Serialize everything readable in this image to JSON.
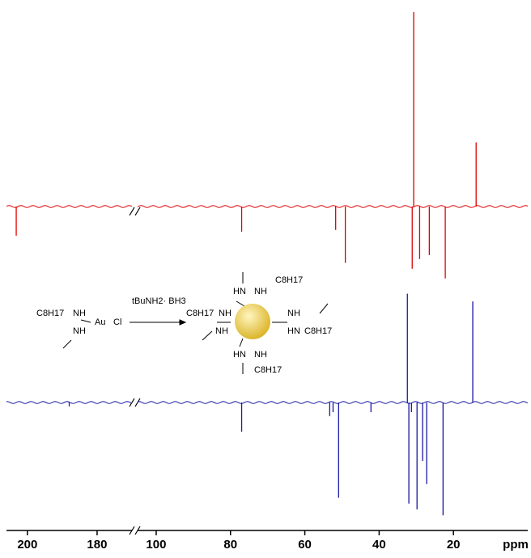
{
  "chart_data": {
    "type": "spectrum",
    "x_label": "ppm",
    "segments": [
      {
        "xlim": [
          206,
          170
        ],
        "xticks": [
          200,
          180
        ]
      },
      {
        "xlim": [
          105,
          0
        ],
        "xticks": [
          100,
          80,
          60,
          40,
          20
        ]
      }
    ],
    "series": [
      {
        "color": "#e00000",
        "x": [
          203.2,
          77,
          51.7,
          49.1,
          31.1,
          30.7,
          29.1,
          26.5,
          22.2,
          13.9
        ],
        "values": [
          -15,
          -13,
          -12,
          -29,
          -32,
          100,
          -27,
          -25,
          -37,
          33
        ]
      },
      {
        "color": "#1a1aa0",
        "x": [
          188,
          77,
          53.3,
          52.4,
          50.9,
          42.2,
          32.4,
          32.0,
          31.3,
          29.8,
          28.3,
          27.2,
          22.8,
          14.8
        ],
        "values": [
          -2,
          -15,
          -7,
          -5,
          -49,
          -5,
          56,
          -52,
          -5,
          -55,
          -30,
          -42,
          -58,
          52
        ]
      }
    ]
  },
  "scheme": {
    "reactant": [
      "C8H17",
      "NH",
      "NH",
      "Au",
      "Cl"
    ],
    "reagent": "tBuNH2· BH3",
    "product": [
      "HN",
      "NH",
      "C8H17",
      "C8H17",
      "NH",
      "NH",
      "NH",
      "HN",
      "C8H17",
      "HN",
      "NH",
      "C8H17"
    ]
  }
}
